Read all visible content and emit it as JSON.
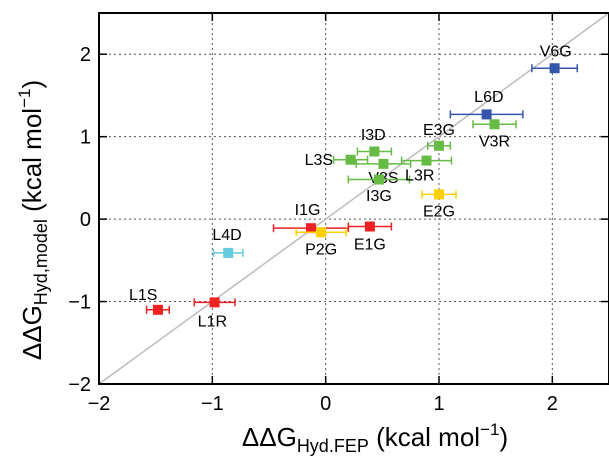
{
  "chart_data": {
    "type": "scatter",
    "title": "",
    "xlabel": {
      "main": "ΔΔG",
      "sub": "Hyd.FEP",
      "unit": " (kcal mol",
      "sup": "−1",
      "close": ")"
    },
    "ylabel": {
      "main": "ΔΔG",
      "sub": "Hyd,model",
      "unit": " (kcal mol",
      "sup": "−1",
      "close": ")"
    },
    "xlim": [
      -2,
      2.5
    ],
    "ylim": [
      -2,
      2.5
    ],
    "xticks": [
      -2,
      -1,
      0,
      1,
      2
    ],
    "yticks": [
      -2,
      -1,
      0,
      1,
      2
    ],
    "xtick_labels": [
      "−2",
      "−1",
      "0",
      "1",
      "2"
    ],
    "ytick_labels": [
      "−2",
      "−1",
      "0",
      "1",
      "2"
    ],
    "grid": true,
    "diagonal": {
      "from": [
        -2,
        -2
      ],
      "to": [
        2.5,
        2.5
      ],
      "color": "#bbbbbb"
    },
    "colors": {
      "red": "#ee2222",
      "cyan": "#66ccdd",
      "yellow": "#ffd000",
      "green": "#66bb44",
      "blue": "#3355aa"
    },
    "points": [
      {
        "label": "L1S",
        "x": -1.48,
        "y": -1.1,
        "xerr": 0.1,
        "color": "red",
        "lx": -1.61,
        "ly": -0.92
      },
      {
        "label": "L1R",
        "x": -0.98,
        "y": -1.01,
        "xerr": 0.18,
        "color": "red",
        "lx": -1.0,
        "ly": -1.24
      },
      {
        "label": "L4D",
        "x": -0.86,
        "y": -0.41,
        "xerr": 0.13,
        "color": "cyan",
        "lx": -0.87,
        "ly": -0.19
      },
      {
        "label": "I1G",
        "x": -0.13,
        "y": -0.11,
        "xerr": 0.33,
        "color": "red",
        "lx": -0.16,
        "ly": 0.11
      },
      {
        "label": "P2G",
        "x": -0.04,
        "y": -0.16,
        "xerr": 0.22,
        "color": "yellow",
        "lx": -0.04,
        "ly": -0.37
      },
      {
        "label": "E1G",
        "x": 0.39,
        "y": -0.09,
        "xerr": 0.19,
        "color": "red",
        "lx": 0.39,
        "ly": -0.31
      },
      {
        "label": "I3D",
        "x": 0.43,
        "y": 0.82,
        "xerr": 0.15,
        "color": "green",
        "lx": 0.42,
        "ly": 1.02
      },
      {
        "label": "L3S",
        "x": 0.22,
        "y": 0.72,
        "xerr": 0.15,
        "color": "green",
        "lx": -0.06,
        "ly": 0.72
      },
      {
        "label": "V3S",
        "x": 0.51,
        "y": 0.67,
        "xerr": 0.24,
        "color": "green",
        "lx": 0.51,
        "ly": 0.5
      },
      {
        "label": "I3G",
        "x": 0.47,
        "y": 0.48,
        "xerr": 0.27,
        "color": "green",
        "lx": 0.47,
        "ly": 0.28
      },
      {
        "label": "L3R",
        "x": 0.89,
        "y": 0.71,
        "xerr": 0.22,
        "color": "green",
        "lx": 0.83,
        "ly": 0.53
      },
      {
        "label": "E3G",
        "x": 1.0,
        "y": 0.89,
        "xerr": 0.1,
        "color": "green",
        "lx": 1.0,
        "ly": 1.08
      },
      {
        "label": "E2G",
        "x": 1.0,
        "y": 0.3,
        "xerr": 0.15,
        "color": "yellow",
        "lx": 1.0,
        "ly": 0.09
      },
      {
        "label": "V3R",
        "x": 1.49,
        "y": 1.15,
        "xerr": 0.19,
        "color": "green",
        "lx": 1.49,
        "ly": 0.94
      },
      {
        "label": "L6D",
        "x": 1.42,
        "y": 1.27,
        "xerr": 0.32,
        "color": "blue",
        "lx": 1.44,
        "ly": 1.48
      },
      {
        "label": "V6G",
        "x": 2.02,
        "y": 1.83,
        "xerr": 0.2,
        "color": "blue",
        "lx": 2.03,
        "ly": 2.03
      }
    ]
  }
}
